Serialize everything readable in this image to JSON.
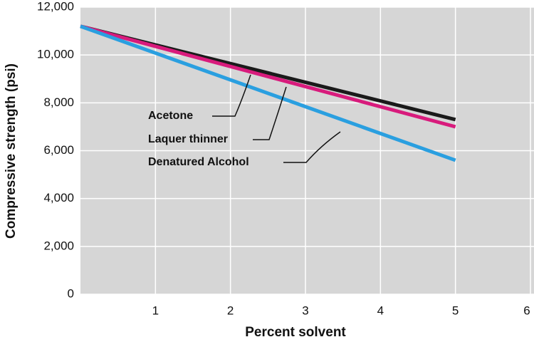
{
  "chart_data": {
    "type": "line",
    "x_label": "Percent solvent",
    "y_label": "Compressive strength (psi)",
    "x": [
      0,
      5
    ],
    "series": [
      {
        "name": "Acetone",
        "color": "#1a1a1a",
        "values": [
          11200,
          7300
        ]
      },
      {
        "name": "Laquer thinner",
        "color": "#d81b7c",
        "values": [
          11200,
          7000
        ]
      },
      {
        "name": "Denatured Alcohol",
        "color": "#2a9fe0",
        "values": [
          11200,
          5600
        ]
      }
    ],
    "xlim": [
      0,
      6
    ],
    "xticks": [
      1,
      2,
      3,
      4,
      5,
      6
    ],
    "ylim": [
      0,
      12000
    ],
    "yticks": [
      0,
      {
        "value": 2000,
        "label": "2,000"
      },
      {
        "value": 4000,
        "label": "4,000"
      },
      {
        "value": 6000,
        "label": "6,000"
      },
      {
        "value": 8000,
        "label": "8,000"
      },
      {
        "value": 10000,
        "label": "10,000"
      },
      {
        "value": 12000,
        "label": "12,000"
      }
    ],
    "grid": true
  }
}
